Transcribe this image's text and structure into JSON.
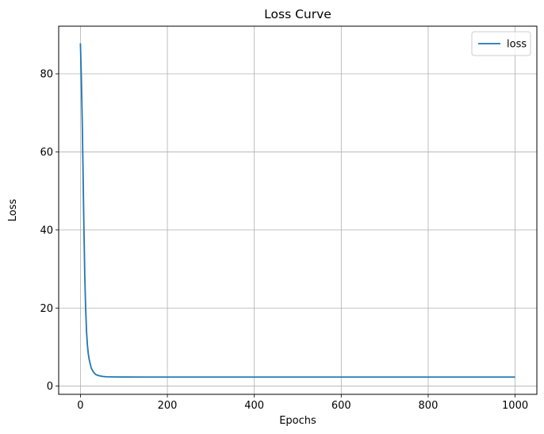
{
  "chart_data": {
    "type": "line",
    "title": "Loss Curve",
    "xlabel": "Epochs",
    "ylabel": "Loss",
    "xlim": [
      -50,
      1050
    ],
    "ylim": [
      -2.1,
      92.2
    ],
    "xticks": [
      0,
      200,
      400,
      600,
      800,
      1000
    ],
    "yticks": [
      0,
      20,
      40,
      60,
      80
    ],
    "grid": true,
    "legend_position": "top-right",
    "colors": {
      "series": "#1f77b4",
      "grid": "#b0b0b0",
      "frame": "#000000"
    },
    "series": [
      {
        "name": "loss",
        "x": [
          0,
          2,
          4,
          6,
          8,
          10,
          12,
          14,
          16,
          18,
          20,
          25,
          30,
          35,
          40,
          50,
          60,
          80,
          100,
          150,
          200,
          300,
          400,
          500,
          600,
          700,
          800,
          900,
          1000
        ],
        "y": [
          87.8,
          79.5,
          69.0,
          55.2,
          41.0,
          28.5,
          20.0,
          14.2,
          10.6,
          8.4,
          6.9,
          4.6,
          3.6,
          3.0,
          2.75,
          2.5,
          2.4,
          2.35,
          2.33,
          2.32,
          2.32,
          2.32,
          2.32,
          2.32,
          2.32,
          2.32,
          2.32,
          2.32,
          2.32
        ]
      }
    ]
  }
}
